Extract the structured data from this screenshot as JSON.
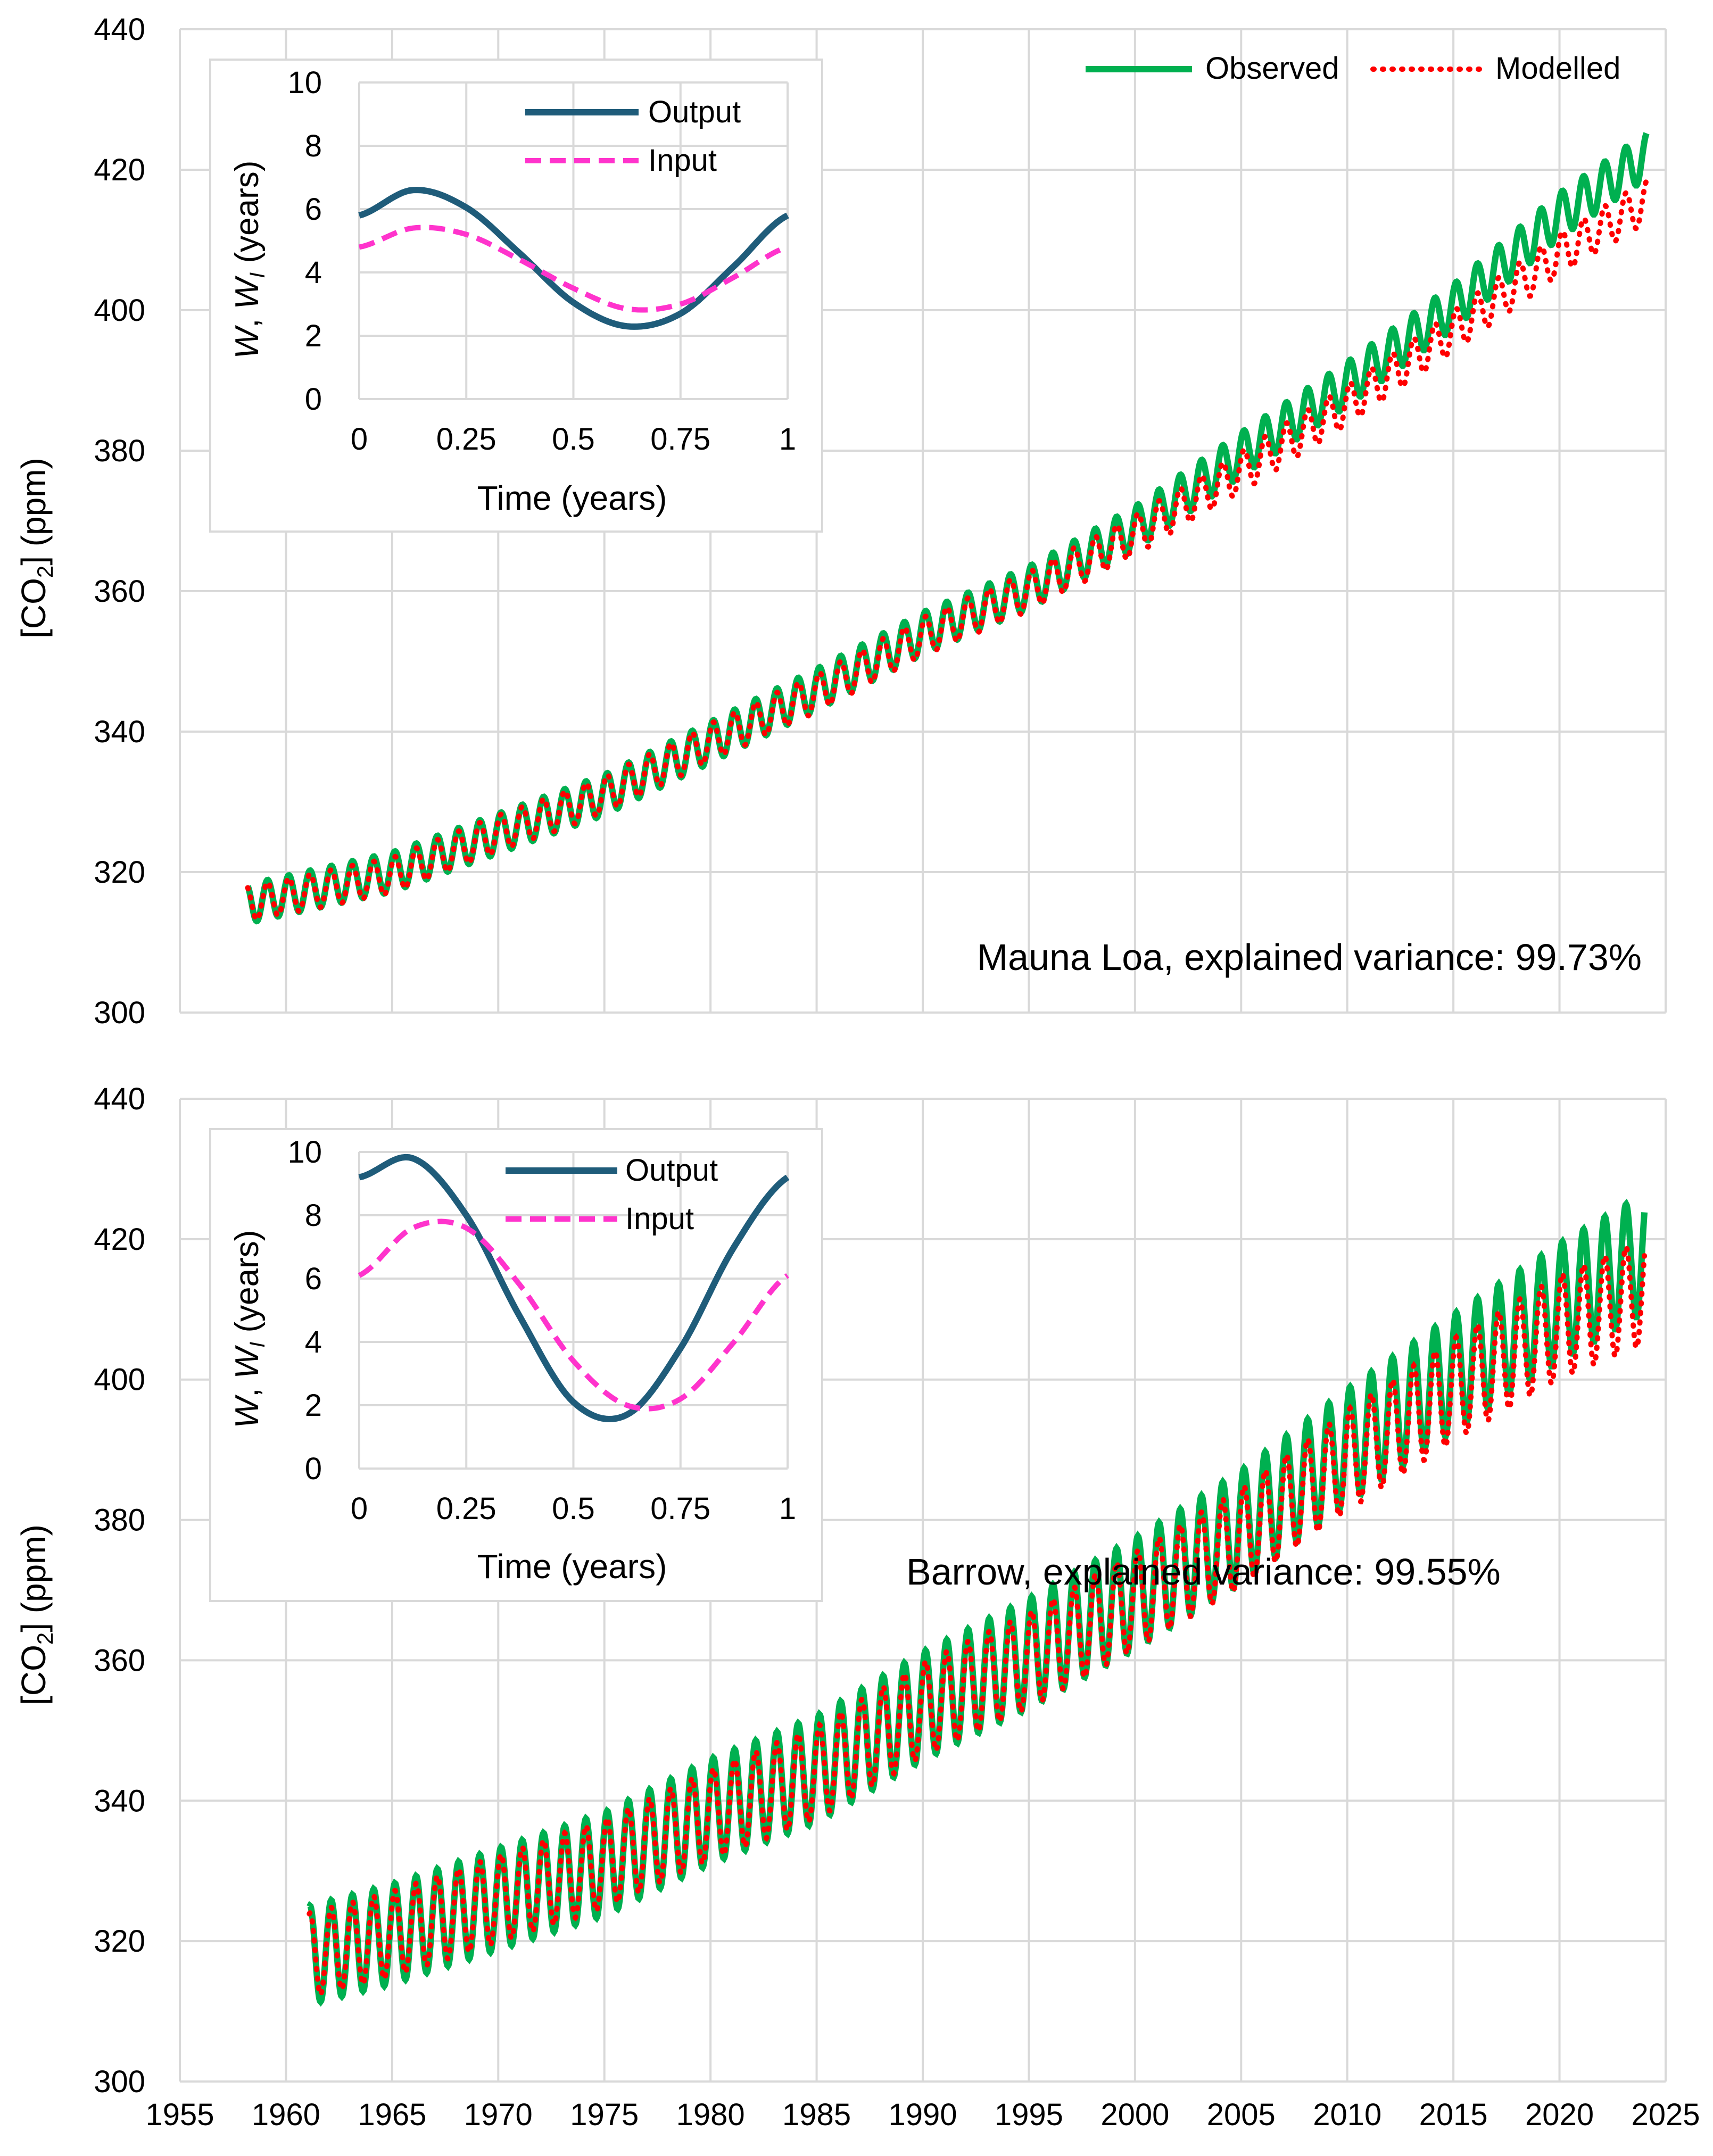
{
  "chart_data": [
    {
      "type": "line",
      "panel": "top",
      "annotation": "Mauna Loa, explained variance: 99.73%",
      "ylabel": "[CO2] (ppm)",
      "xlabel": "",
      "xlim": [
        1955,
        2025
      ],
      "ylim": [
        300,
        440
      ],
      "xticks": [
        1955,
        1960,
        1965,
        1970,
        1975,
        1980,
        1985,
        1990,
        1995,
        2000,
        2005,
        2010,
        2015,
        2020,
        2025
      ],
      "yticks": [
        300,
        320,
        340,
        360,
        380,
        400,
        420,
        440
      ],
      "show_x_tick_labels": false,
      "grid": true,
      "legend_position": "top-right",
      "colors": {
        "observed": "#00b050",
        "modelled": "#ff0000"
      },
      "series": [
        {
          "name": "Observed",
          "style": "solid",
          "x_start": 1958.2,
          "x_end": 2024.1,
          "sample_points": [
            [
              1958.2,
              315.5
            ],
            [
              1965,
              320
            ],
            [
              1970,
              325.5
            ],
            [
              1975,
              331
            ],
            [
              1980,
              338.5
            ],
            [
              1985,
              346
            ],
            [
              1990,
              354
            ],
            [
              1995,
              360.5
            ],
            [
              2000,
              369
            ],
            [
              2005,
              379.5
            ],
            [
              2010,
              389.5
            ],
            [
              2015,
              400.5
            ],
            [
              2020,
              413.5
            ],
            [
              2024.1,
              422
            ]
          ],
          "seasonal_amplitude_ppm": [
            5.5,
            6.5
          ]
        },
        {
          "name": "Modelled",
          "style": "dotted",
          "x_start": 1958.2,
          "x_end": 2024.1,
          "sample_points": [
            [
              1958.2,
              315.5
            ],
            [
              1965,
              319.5
            ],
            [
              1970,
              325.5
            ],
            [
              1975,
              331
            ],
            [
              1980,
              338.5
            ],
            [
              1985,
              345.5
            ],
            [
              1990,
              353.5
            ],
            [
              1995,
              360
            ],
            [
              2000,
              368
            ],
            [
              2005,
              377
            ],
            [
              2010,
              386.5
            ],
            [
              2015,
              397
            ],
            [
              2020,
              408
            ],
            [
              2024.1,
              415.5
            ]
          ],
          "seasonal_amplitude_ppm": [
            5,
            6
          ]
        }
      ],
      "inset": {
        "type": "line",
        "xlabel": "Time (years)",
        "ylabel": "W, W_I (years)",
        "xlim": [
          0,
          1
        ],
        "ylim": [
          0,
          10
        ],
        "xticks": [
          "0",
          "0.25",
          "0.5",
          "0.75",
          "1"
        ],
        "yticks": [
          "0",
          "2",
          "4",
          "6",
          "8",
          "10"
        ],
        "legend_position": "top-right",
        "series": [
          {
            "name": "Output",
            "color": "#1f5c7a",
            "style": "solid",
            "x": [
              0,
              0.125,
              0.25,
              0.375,
              0.5,
              0.625,
              0.75,
              0.875,
              1
            ],
            "y": [
              5.8,
              6.6,
              6.05,
              4.6,
              3.05,
              2.3,
              2.7,
              4.2,
              5.8
            ]
          },
          {
            "name": "Input",
            "color": "#ff33cc",
            "style": "dashed",
            "x": [
              0,
              0.125,
              0.25,
              0.375,
              0.5,
              0.625,
              0.75,
              0.875,
              1
            ],
            "y": [
              4.8,
              5.4,
              5.2,
              4.4,
              3.5,
              2.85,
              3.0,
              3.85,
              4.8
            ]
          }
        ]
      }
    },
    {
      "type": "line",
      "panel": "bottom",
      "annotation": "Barrow, explained variance: 99.55%",
      "ylabel": "[CO2] (ppm)",
      "xlabel": "",
      "xlim": [
        1955,
        2025
      ],
      "ylim": [
        300,
        440
      ],
      "xticks": [
        1955,
        1960,
        1965,
        1970,
        1975,
        1980,
        1985,
        1990,
        1995,
        2000,
        2005,
        2010,
        2015,
        2020,
        2025
      ],
      "yticks": [
        300,
        320,
        340,
        360,
        380,
        400,
        420,
        440
      ],
      "show_x_tick_labels": true,
      "grid": true,
      "colors": {
        "observed": "#00b050",
        "modelled": "#ff0000"
      },
      "series": [
        {
          "name": "Observed",
          "style": "solid",
          "x_start": 1961.1,
          "x_end": 2024.0,
          "sample_points": [
            [
              1961.1,
              318
            ],
            [
              1965,
              321
            ],
            [
              1970,
              326
            ],
            [
              1975,
              331
            ],
            [
              1980,
              338.5
            ],
            [
              1985,
              344.5
            ],
            [
              1990,
              353.5
            ],
            [
              1995,
              361
            ],
            [
              2000,
              369.5
            ],
            [
              2005,
              379
            ],
            [
              2010,
              390.5
            ],
            [
              2015,
              401
            ],
            [
              2020,
              411
            ],
            [
              2024.0,
              418
            ]
          ],
          "seasonal_amplitude_ppm": [
            14,
            17
          ]
        },
        {
          "name": "Modelled",
          "style": "dotted",
          "x_start": 1961.1,
          "x_end": 2024.0,
          "sample_points": [
            [
              1961.1,
              318
            ],
            [
              1965,
              321
            ],
            [
              1970,
              326
            ],
            [
              1975,
              331
            ],
            [
              1980,
              338
            ],
            [
              1985,
              344
            ],
            [
              1990,
              353
            ],
            [
              1995,
              360
            ],
            [
              2000,
              368.5
            ],
            [
              2005,
              377.5
            ],
            [
              2010,
              388.5
            ],
            [
              2015,
              398.5
            ],
            [
              2020,
              407.5
            ],
            [
              2024.0,
              412.5
            ]
          ],
          "seasonal_amplitude_ppm": [
            12,
            15
          ]
        }
      ],
      "inset": {
        "type": "line",
        "xlabel": "Time (years)",
        "ylabel": "W, W_I (years)",
        "xlim": [
          0,
          1
        ],
        "ylim": [
          0,
          10
        ],
        "xticks": [
          "0",
          "0.25",
          "0.5",
          "0.75",
          "1"
        ],
        "yticks": [
          "0",
          "2",
          "4",
          "6",
          "8",
          "10"
        ],
        "legend_position": "top-right",
        "series": [
          {
            "name": "Output",
            "color": "#1f5c7a",
            "style": "solid",
            "x": [
              0,
              0.125,
              0.25,
              0.375,
              0.5,
              0.625,
              0.75,
              0.875,
              1
            ],
            "y": [
              9.2,
              9.8,
              8.0,
              4.8,
              2.1,
              1.7,
              3.8,
              7.0,
              9.2
            ]
          },
          {
            "name": "Input",
            "color": "#ff33cc",
            "style": "dashed",
            "x": [
              0,
              0.125,
              0.25,
              0.375,
              0.5,
              0.625,
              0.75,
              0.875,
              1
            ],
            "y": [
              6.1,
              7.6,
              7.6,
              5.8,
              3.4,
              2.0,
              2.2,
              4.0,
              6.1
            ]
          }
        ]
      }
    }
  ],
  "labels": {
    "ylabel_main": "[CO",
    "ylabel_sub": "2",
    "ylabel_tail": "] (ppm)",
    "inset_xlabel": "Time (years)",
    "inset_ylabel_w": "W",
    "inset_ylabel_sep": ", ",
    "inset_ylabel_wi": "W",
    "inset_ylabel_wi_sub": "I",
    "inset_ylabel_tail": " (years)",
    "legend_observed": "Observed",
    "legend_modelled": "Modelled",
    "legend_output": "Output",
    "legend_input": "Input",
    "top_annotation": "Mauna Loa, explained variance: 99.73%",
    "bottom_annotation": "Barrow, explained variance: 99.55%"
  }
}
